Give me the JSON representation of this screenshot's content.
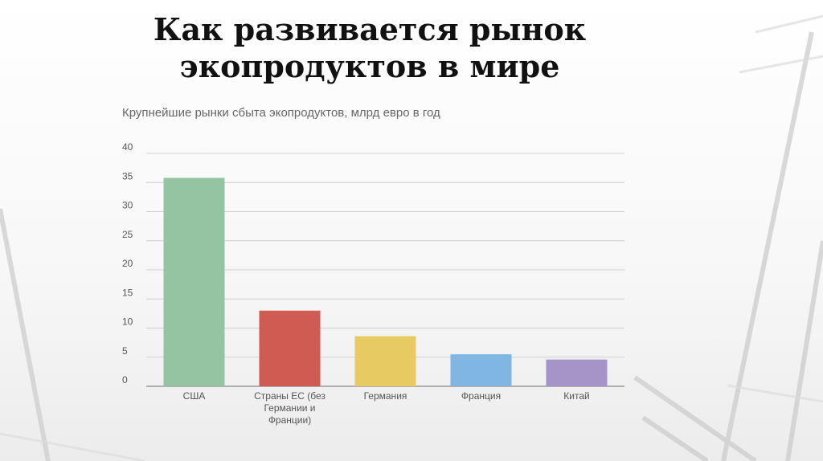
{
  "slide": {
    "title_line1": "Как развивается рынок",
    "title_line2": "экопродуктов в мире"
  },
  "chart_data": {
    "type": "bar",
    "title": "Крупнейшие рынки сбыта экопродуктов, млрд евро в год",
    "xlabel": "",
    "ylabel": "",
    "ylim": [
      0,
      40
    ],
    "yticks": [
      0,
      5,
      10,
      15,
      20,
      25,
      30,
      35,
      40
    ],
    "grid": true,
    "categories": [
      [
        "США"
      ],
      [
        "Страны ЕС (без",
        "Германии и",
        "Франции)"
      ],
      [
        "Германия"
      ],
      [
        "Франция"
      ],
      [
        "Китай"
      ]
    ],
    "values": [
      35.8,
      13,
      8.6,
      5.5,
      4.6
    ],
    "colors": [
      "#94c4a1",
      "#cf5c53",
      "#e8ca62",
      "#7fb6e2",
      "#a594c7"
    ]
  }
}
